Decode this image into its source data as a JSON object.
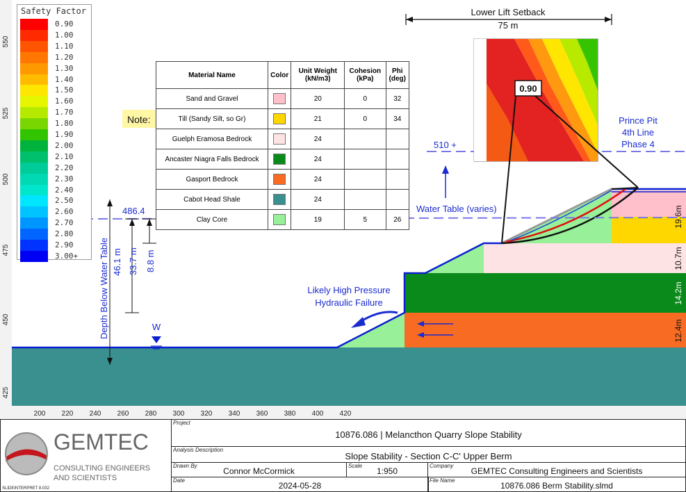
{
  "legend": {
    "title": "Safety Factor",
    "items": [
      {
        "label": "0.90",
        "color": "#ff0000"
      },
      {
        "label": "1.00",
        "color": "#ff2a00"
      },
      {
        "label": "1.10",
        "color": "#ff5500"
      },
      {
        "label": "1.20",
        "color": "#ff7700"
      },
      {
        "label": "1.30",
        "color": "#ff9900"
      },
      {
        "label": "1.40",
        "color": "#ffbb00"
      },
      {
        "label": "1.50",
        "color": "#ffe600"
      },
      {
        "label": "1.60",
        "color": "#e6f500"
      },
      {
        "label": "1.70",
        "color": "#b5ea00"
      },
      {
        "label": "1.80",
        "color": "#7ad600"
      },
      {
        "label": "1.90",
        "color": "#33c400"
      },
      {
        "label": "2.00",
        "color": "#00b33c"
      },
      {
        "label": "2.10",
        "color": "#00c06e"
      },
      {
        "label": "2.20",
        "color": "#00cc99"
      },
      {
        "label": "2.30",
        "color": "#00d9b3"
      },
      {
        "label": "2.40",
        "color": "#00e6cc"
      },
      {
        "label": "2.50",
        "color": "#00e6ff"
      },
      {
        "label": "2.60",
        "color": "#00c3ff"
      },
      {
        "label": "2.70",
        "color": "#0096ff"
      },
      {
        "label": "2.80",
        "color": "#0066ff"
      },
      {
        "label": "2.90",
        "color": "#0033ff"
      },
      {
        "label": "3.00+",
        "color": "#0000f5"
      }
    ]
  },
  "axes": {
    "x_ticks": [
      "200",
      "220",
      "240",
      "260",
      "280",
      "300",
      "320",
      "340",
      "360",
      "380",
      "400",
      "420"
    ],
    "y_ticks": [
      "425",
      "450",
      "475",
      "500",
      "525",
      "550"
    ]
  },
  "table": {
    "headers": {
      "name": "Material Name",
      "color": "Color",
      "unit_weight": "Unit Weight (kN/m3)",
      "cohesion": "Cohesion (kPa)",
      "phi": "Phi (deg)"
    },
    "rows": [
      {
        "name": "Sand and Gravel",
        "color": "#ffc0cb",
        "unit_weight": "20",
        "cohesion": "0",
        "phi": "32"
      },
      {
        "name": "Till (Sandy Silt, so Gr)",
        "color": "#ffd700",
        "unit_weight": "21",
        "cohesion": "0",
        "phi": "34"
      },
      {
        "name": "Guelph Eramosa Bedrock",
        "color": "#fde3e3",
        "unit_weight": "24",
        "cohesion": "",
        "phi": ""
      },
      {
        "name": "Ancaster Niagra Falls Bedrock",
        "color": "#0a8a1a",
        "unit_weight": "24",
        "cohesion": "",
        "phi": ""
      },
      {
        "name": "Gasport Bedrock",
        "color": "#f76b22",
        "unit_weight": "24",
        "cohesion": "",
        "phi": ""
      },
      {
        "name": "Cabot Head Shale",
        "color": "#3a8f8f",
        "unit_weight": "24",
        "cohesion": "",
        "phi": ""
      },
      {
        "name": "Clay Core",
        "color": "#98f098",
        "unit_weight": "19",
        "cohesion": "5",
        "phi": "26"
      }
    ]
  },
  "annotations": {
    "note": "Note:",
    "setback_title": "Lower Lift Setback",
    "setback_value": "75 m",
    "fs_value": "0.90",
    "prince_pit": [
      "Prince Pit",
      "4th Line",
      "Phase 4"
    ],
    "elev_510": "510 +",
    "water_table": "Water Table (varies)",
    "elev_486": "486.4",
    "depth_label": "Depth Below Water Table",
    "depth_46": "46.1 m",
    "depth_33": "33.7 m",
    "depth_8": "8.8 m",
    "likely_1": "Likely High Pressure",
    "likely_2": "Hydraulic Failure",
    "water_symbol": "W",
    "thick_196": "19.6m",
    "thick_107": "10.7m",
    "thick_142": "14.2m",
    "thick_124": "12.4m"
  },
  "title_block": {
    "company_logo_text1": "GEMTEC",
    "company_logo_text2": "CONSULTING ENGINEERS",
    "company_logo_text3": "AND SCIENTISTS",
    "software": "SLIDEINTERPRET 8.032",
    "project_label": "Project",
    "project": "10876.086 | Melancthon Quarry Slope Stability",
    "analysis_label": "Analysis Description",
    "analysis": "Slope Stability - Section C-C' Upper Berm",
    "drawn_label": "Drawn By",
    "drawn": "Connor McCormick",
    "scale_label": "Scale",
    "scale": "1:950",
    "company_label": "Company",
    "company": "GEMTEC Consulting Engineers and Scientists",
    "date_label": "Date",
    "date": "2024-05-28",
    "file_label": "File Name",
    "file": "10876.086 Berm Stability.slmd"
  },
  "colors": {
    "bedrock_teal": "#3a8f8f",
    "gasport": "#f76b22",
    "ancaster": "#0a8a1a",
    "guelph": "#fde3e3",
    "clay": "#98f098",
    "till": "#ffd700",
    "sand": "#ffc0cb",
    "line_blue": "#0a1fcf",
    "water_dash": "#7878e8"
  }
}
